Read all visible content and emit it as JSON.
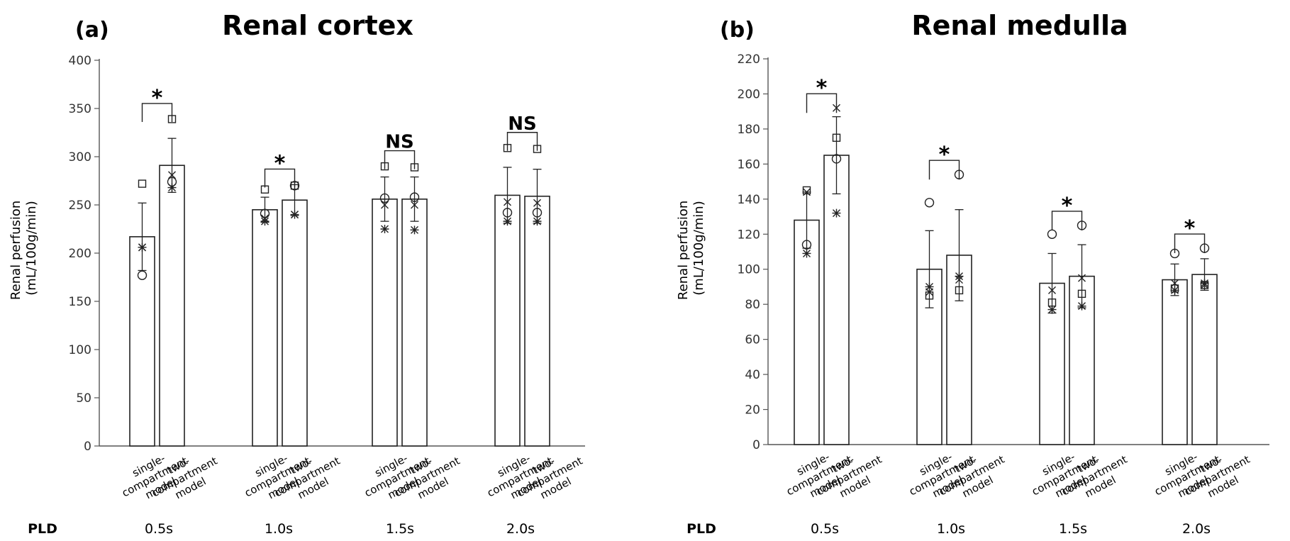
{
  "pld_label": "PLD",
  "category_labels": [
    [
      "single-",
      "compartment",
      "model"
    ],
    [
      "two-",
      "compartment",
      "model"
    ]
  ],
  "chart_data": [
    {
      "type": "bar",
      "panel_label": "(a)",
      "title": "Renal cortex",
      "ylabel": [
        "Renal perfusion",
        "(mL/100g/min)"
      ],
      "ylim": [
        0,
        400
      ],
      "yticks": [
        0,
        50,
        100,
        150,
        200,
        250,
        300,
        350,
        400
      ],
      "groups": [
        {
          "pld": "0.5s",
          "significance": "*",
          "bars": [
            {
              "model": "single-compartment model",
              "mean": 217,
              "error": 35,
              "points": {
                "square": 272,
                "circle": 177,
                "cross": 206,
                "star": 206
              }
            },
            {
              "model": "two-compartment model",
              "mean": 291,
              "error": 28,
              "points": {
                "square": 339,
                "circle": 274,
                "cross": 281,
                "star": 268
              }
            }
          ]
        },
        {
          "pld": "1.0s",
          "significance": "*",
          "bars": [
            {
              "model": "single-compartment model",
              "mean": 245,
              "error": 13,
              "points": {
                "square": 266,
                "circle": 241,
                "cross": 236,
                "star": 233
              }
            },
            {
              "model": "two-compartment model",
              "mean": 255,
              "error": 16,
              "points": {
                "square": 270,
                "circle": 270,
                "cross": 240,
                "star": 240
              }
            }
          ]
        },
        {
          "pld": "1.5s",
          "significance": "NS",
          "bars": [
            {
              "model": "single-compartment model",
              "mean": 256,
              "error": 23,
              "points": {
                "square": 290,
                "circle": 257,
                "cross": 250,
                "star": 225
              }
            },
            {
              "model": "two-compartment model",
              "mean": 256,
              "error": 23,
              "points": {
                "square": 289,
                "circle": 258,
                "cross": 250,
                "star": 224
              }
            }
          ]
        },
        {
          "pld": "2.0s",
          "significance": "NS",
          "bars": [
            {
              "model": "single-compartment model",
              "mean": 260,
              "error": 29,
              "points": {
                "square": 309,
                "circle": 242,
                "cross": 253,
                "star": 233
              }
            },
            {
              "model": "two-compartment model",
              "mean": 259,
              "error": 28,
              "points": {
                "square": 308,
                "circle": 242,
                "cross": 252,
                "star": 233
              }
            }
          ]
        }
      ]
    },
    {
      "type": "bar",
      "panel_label": "(b)",
      "title": "Renal medulla",
      "ylabel": [
        "Renal perfusion",
        "(mL/100g/min)"
      ],
      "ylim": [
        0,
        220
      ],
      "yticks": [
        0,
        20,
        40,
        60,
        80,
        100,
        120,
        140,
        160,
        180,
        200,
        220
      ],
      "groups": [
        {
          "pld": "0.5s",
          "significance": "*",
          "bars": [
            {
              "model": "single-compartment model",
              "mean": 128,
              "error": 16,
              "points": {
                "square": 145,
                "circle": 114,
                "cross": 144,
                "star": 109
              }
            },
            {
              "model": "two-compartment model",
              "mean": 165,
              "error": 22,
              "points": {
                "square": 175,
                "circle": 163,
                "cross": 192,
                "star": 132
              }
            }
          ]
        },
        {
          "pld": "1.0s",
          "significance": "*",
          "bars": [
            {
              "model": "single-compartment model",
              "mean": 100,
              "error": 22,
              "points": {
                "square": 85,
                "circle": 138,
                "cross": 87,
                "star": 90
              }
            },
            {
              "model": "two-compartment model",
              "mean": 108,
              "error": 26,
              "points": {
                "square": 88,
                "circle": 154,
                "cross": 94,
                "star": 96
              }
            }
          ]
        },
        {
          "pld": "1.5s",
          "significance": "*",
          "bars": [
            {
              "model": "single-compartment model",
              "mean": 92,
              "error": 17,
              "points": {
                "square": 81,
                "circle": 120,
                "cross": 88,
                "star": 77
              }
            },
            {
              "model": "two-compartment model",
              "mean": 96,
              "error": 18,
              "points": {
                "square": 86,
                "circle": 125,
                "cross": 95,
                "star": 79
              }
            }
          ]
        },
        {
          "pld": "2.0s",
          "significance": "*",
          "bars": [
            {
              "model": "single-compartment model",
              "mean": 94,
              "error": 9,
              "points": {
                "square": 89,
                "circle": 109,
                "cross": 92,
                "star": 88
              }
            },
            {
              "model": "two-compartment model",
              "mean": 97,
              "error": 9,
              "points": {
                "square": 91,
                "circle": 112,
                "cross": 91,
                "star": 92
              }
            }
          ]
        }
      ]
    }
  ]
}
